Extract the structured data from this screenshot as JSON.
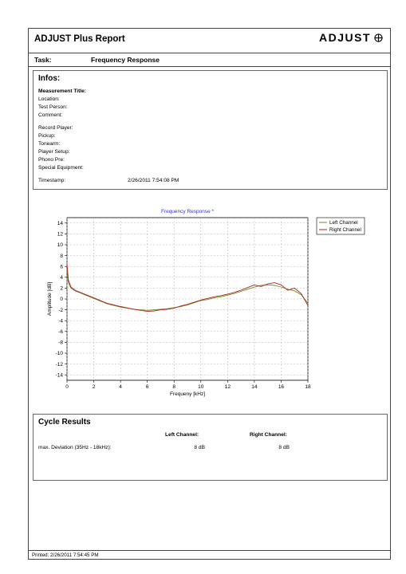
{
  "header": {
    "title": "ADJUST Plus Report",
    "brand": "ADJUST"
  },
  "task": {
    "label": "Task:",
    "value": "Frequency Response"
  },
  "infos": {
    "title": "Infos:",
    "fields": [
      "Measurement Title:",
      "Location:",
      "Test Person:",
      "Comment:",
      "Record Player:",
      "Pickup:",
      "Tonearm:",
      "Player Setup:",
      "Phono Pre:",
      "Special Equipment:"
    ],
    "timestamp_label": "Timestamp:",
    "timestamp_value": "2/26/2011 7:54:08 PM"
  },
  "chart_data": {
    "type": "line",
    "title": "Frequency Response *",
    "xlabel": "Frequeny [kHz]",
    "ylabel": "Amplitude [dB]",
    "xlim": [
      0,
      18
    ],
    "ylim": [
      -15,
      15
    ],
    "xticks": [
      0,
      2,
      4,
      6,
      8,
      10,
      12,
      14,
      16,
      18
    ],
    "yticks": [
      14,
      12,
      10,
      8,
      6,
      4,
      2,
      0,
      -2,
      -4,
      -6,
      -8,
      -10,
      -12,
      -14
    ],
    "grid": true,
    "legend_position": "top-right",
    "series": [
      {
        "name": "Left Channel",
        "color": "#6b8e23",
        "x": [
          0,
          0.1,
          0.3,
          0.6,
          1,
          1.5,
          2,
          3,
          4,
          5,
          6,
          6.5,
          7,
          7.5,
          8,
          8.5,
          9,
          9.5,
          10,
          10.5,
          11,
          11.5,
          12,
          12.5,
          13,
          13.5,
          14,
          14.5,
          15,
          15.5,
          16,
          16.5,
          17,
          17.5,
          18
        ],
        "y": [
          5.5,
          3.0,
          2.0,
          1.5,
          1.1,
          0.6,
          0.1,
          -0.9,
          -1.5,
          -1.9,
          -2.1,
          -2.0,
          -1.9,
          -1.8,
          -1.6,
          -1.4,
          -1.1,
          -0.7,
          -0.3,
          -0.1,
          0.2,
          0.4,
          0.7,
          1.0,
          1.4,
          1.8,
          2.2,
          2.5,
          2.6,
          2.5,
          2.2,
          1.8,
          1.5,
          0.8,
          -0.8
        ]
      },
      {
        "name": "Right Channel",
        "color": "#b22222",
        "x": [
          0,
          0.1,
          0.3,
          0.6,
          1,
          1.5,
          2,
          3,
          4,
          5,
          6,
          6.5,
          7,
          7.5,
          8,
          8.5,
          9,
          9.5,
          10,
          10.5,
          11,
          11.5,
          12,
          12.5,
          13,
          13.5,
          14,
          14.5,
          15,
          15.5,
          16,
          16.5,
          17,
          17.5,
          18
        ],
        "y": [
          6.5,
          3.5,
          2.2,
          1.6,
          1.2,
          0.7,
          0.2,
          -0.8,
          -1.4,
          -1.9,
          -2.3,
          -2.2,
          -2.0,
          -1.9,
          -1.7,
          -1.3,
          -1.0,
          -0.6,
          -0.2,
          0.1,
          0.4,
          0.6,
          0.9,
          1.2,
          1.6,
          2.1,
          2.6,
          2.3,
          2.8,
          3.0,
          2.6,
          1.6,
          2.0,
          1.0,
          -1.2
        ]
      }
    ]
  },
  "cycle": {
    "title": "Cycle Results",
    "left_header": "Left Channel:",
    "right_header": "Right Channel:",
    "row_label": "max. Deviation (35Hz - 18kHz):",
    "left_value": "8  dB",
    "right_value": "8  dB"
  },
  "footer": {
    "printed": "Printed: 2/26/2011 7:54:45 PM"
  }
}
